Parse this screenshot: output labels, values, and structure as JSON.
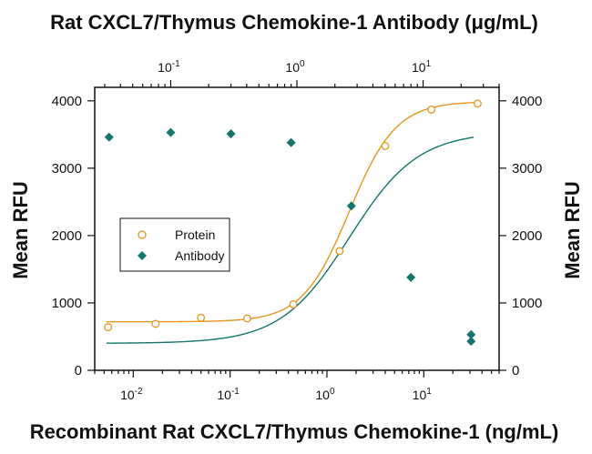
{
  "colors": {
    "protein": "#e8961e",
    "antibody": "#13756b",
    "axis": "#111111"
  },
  "chart_data": {
    "type": "scatter",
    "title": "Rat CXCL7/Thymus Chemokine-1 Antibody (μg/mL)",
    "xlabel": "Recombinant Rat CXCL7/Thymus Chemokine-1 (ng/mL)",
    "ylabel_left": "Mean RFU",
    "ylabel_right": "Mean RFU",
    "x_scale": "log",
    "xlim": [
      0.004,
      60
    ],
    "top_xlim": [
      0.025,
      40
    ],
    "ylim": [
      0,
      4200
    ],
    "bottom_x_ticks": [
      {
        "base": "10",
        "exp": "-2",
        "value": 0.01
      },
      {
        "base": "10",
        "exp": "-1",
        "value": 0.1
      },
      {
        "base": "10",
        "exp": "0",
        "value": 1
      },
      {
        "base": "10",
        "exp": "1",
        "value": 10
      }
    ],
    "top_x_ticks": [
      {
        "base": "10",
        "exp": "-1",
        "value": 0.1
      },
      {
        "base": "10",
        "exp": "0",
        "value": 1
      },
      {
        "base": "10",
        "exp": "1",
        "value": 10
      }
    ],
    "y_ticks": [
      0,
      1000,
      2000,
      3000,
      4000
    ],
    "legend_position": "center-left",
    "series": [
      {
        "name": "Protein",
        "marker": "open-circle",
        "axis": "bottom",
        "x": [
          0.0055,
          0.017,
          0.05,
          0.15,
          0.45,
          1.35,
          4.0,
          12.0,
          36.0
        ],
        "y": [
          640,
          690,
          780,
          770,
          980,
          1770,
          3330,
          3870,
          3960
        ],
        "fit": {
          "bottom": 720,
          "top": 3990,
          "ec50": 1.7,
          "hill": 1.8
        }
      },
      {
        "name": "Antibody",
        "marker": "filled-diamond",
        "axis": "top",
        "x": [
          0.0325,
          0.1,
          0.3,
          0.9,
          2.7,
          8.0,
          24.0
        ],
        "y": [
          3460,
          3530,
          3510,
          3380,
          2440,
          1380,
          530
        ],
        "fit": {
          "bottom": 400,
          "top": 3540,
          "ec50": 2.6,
          "hill": 1.6
        }
      },
      {
        "name": "",
        "marker": "filled-diamond",
        "axis": "top",
        "x": [
          24.0
        ],
        "y": [
          430
        ],
        "note_hidden": true
      }
    ]
  }
}
